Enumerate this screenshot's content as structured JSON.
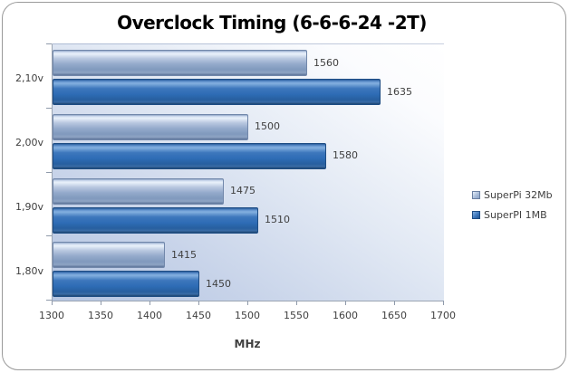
{
  "chart_data": {
    "type": "bar",
    "orientation": "horizontal",
    "title": "Overclock Timing (6-6-6-24 -2T)",
    "categories": [
      "2,10v",
      "2,00v",
      "1,90v",
      "1,80v"
    ],
    "series": [
      {
        "name": "SuperPi 32Mb",
        "color": "#9fb1d1",
        "values": [
          1560,
          1500,
          1475,
          1415
        ]
      },
      {
        "name": "SuperPI 1MB",
        "color": "#2e6cb5",
        "values": [
          1635,
          1580,
          1510,
          1450
        ]
      }
    ],
    "xlabel": "MHz",
    "xlim": [
      1300,
      1700
    ],
    "xticks": [
      1300,
      1350,
      1400,
      1450,
      1500,
      1550,
      1600,
      1650,
      1700
    ],
    "legend_position": "right",
    "grid": false,
    "plot_background": "gradient-blue-to-white",
    "value_labels_shown": true
  },
  "colors": {
    "series_light": "#9fb1d1",
    "series_dark": "#2e6cb5",
    "text": "#3f3f3f",
    "axis": "#9aa4b2",
    "frame_border": "#9a9a9a"
  }
}
